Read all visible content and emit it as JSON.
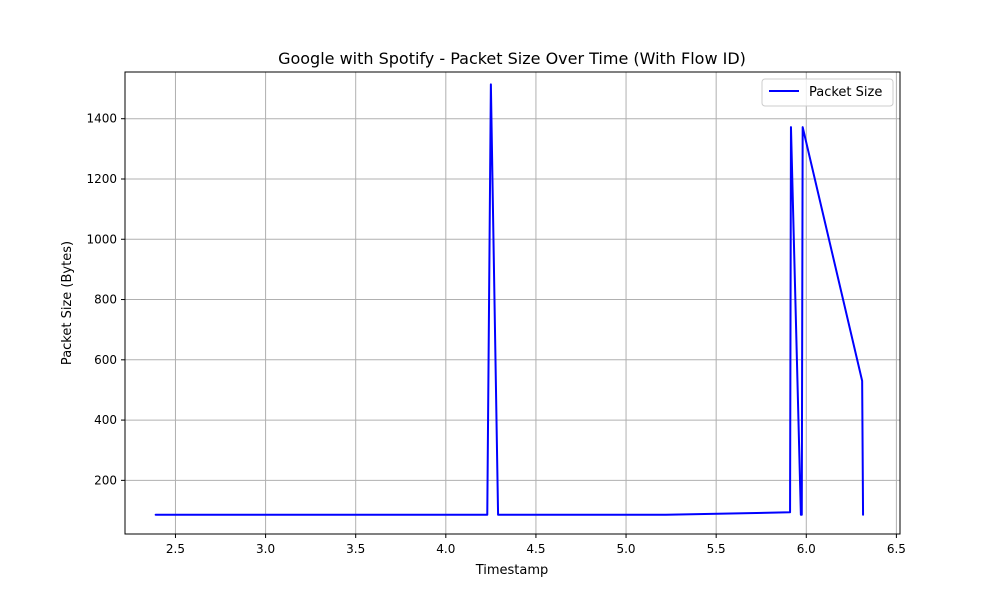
{
  "chart_data": {
    "type": "line",
    "title": "Google with Spotify - Packet Size Over Time (With Flow ID)",
    "xlabel": "Timestamp",
    "ylabel": "Packet Size (Bytes)",
    "xlim": [
      2.22,
      6.52
    ],
    "ylim": [
      22,
      1555
    ],
    "xticks": [
      2.5,
      3.0,
      3.5,
      4.0,
      4.5,
      5.0,
      5.5,
      6.0,
      6.5
    ],
    "xtick_labels": [
      "2.5",
      "3.0",
      "3.5",
      "4.0",
      "4.5",
      "5.0",
      "5.5",
      "6.0",
      "6.5"
    ],
    "yticks": [
      200,
      400,
      600,
      800,
      1000,
      1200,
      1400
    ],
    "ytick_labels": [
      "200",
      "400",
      "600",
      "800",
      "1000",
      "1200",
      "1400"
    ],
    "grid": true,
    "legend_position": "top-right",
    "series": [
      {
        "name": "Packet Size",
        "color": "#0000ff",
        "x": [
          2.39,
          4.23,
          4.25,
          4.29,
          5.22,
          5.91,
          5.915,
          5.97,
          5.975,
          5.98,
          6.31,
          6.315
        ],
        "y": [
          86,
          86,
          1514,
          86,
          86,
          94,
          1372,
          86,
          86,
          1372,
          530,
          86
        ]
      }
    ]
  }
}
